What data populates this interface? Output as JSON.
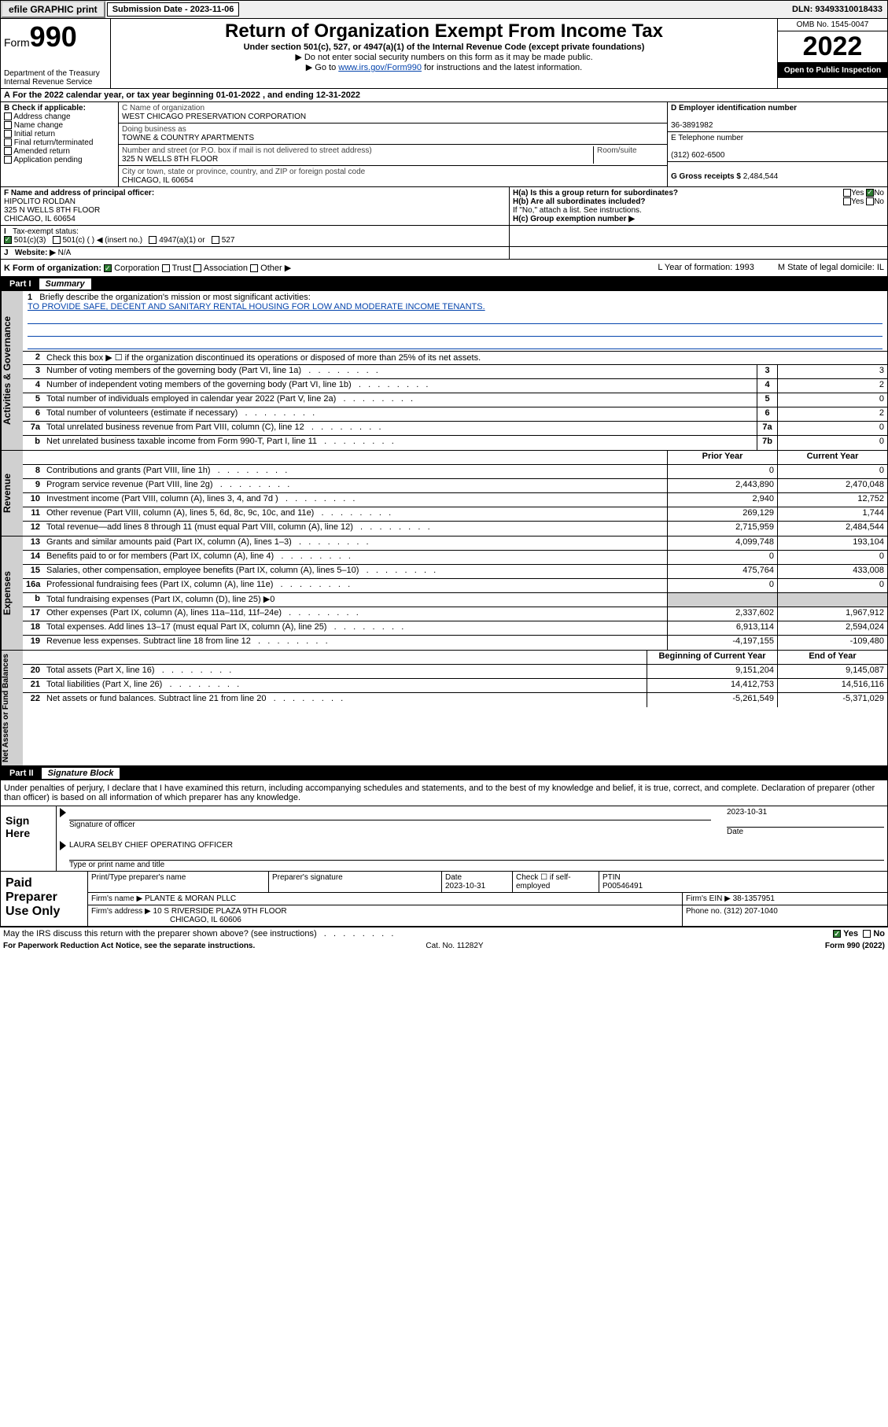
{
  "topbar": {
    "efile": "efile GRAPHIC print",
    "subdate_label": "Submission Date - 2023-11-06",
    "dln": "DLN: 93493310018433"
  },
  "header": {
    "form_label": "Form",
    "form_num": "990",
    "dept": "Department of the Treasury",
    "irs": "Internal Revenue Service",
    "title": "Return of Organization Exempt From Income Tax",
    "sub1": "Under section 501(c), 527, or 4947(a)(1) of the Internal Revenue Code (except private foundations)",
    "sub2": "▶ Do not enter social security numbers on this form as it may be made public.",
    "sub3_pre": "▶ Go to ",
    "sub3_link": "www.irs.gov/Form990",
    "sub3_post": " for instructions and the latest information.",
    "omb": "OMB No. 1545-0047",
    "year": "2022",
    "open": "Open to Public Inspection"
  },
  "A": {
    "text": "For the 2022 calendar year, or tax year beginning 01-01-2022   , and ending 12-31-2022"
  },
  "B": {
    "label": "B Check if applicable:",
    "opts": [
      "Address change",
      "Name change",
      "Initial return",
      "Final return/terminated",
      "Amended return",
      "Application pending"
    ]
  },
  "C": {
    "name_label": "C Name of organization",
    "name": "WEST CHICAGO PRESERVATION CORPORATION",
    "dba_label": "Doing business as",
    "dba": "TOWNE & COUNTRY APARTMENTS",
    "addr_label": "Number and street (or P.O. box if mail is not delivered to street address)",
    "room_label": "Room/suite",
    "addr": "325 N WELLS 8TH FLOOR",
    "city_label": "City or town, state or province, country, and ZIP or foreign postal code",
    "city": "CHICAGO, IL  60654"
  },
  "D": {
    "label": "D Employer identification number",
    "val": "36-3891982"
  },
  "E": {
    "label": "E Telephone number",
    "val": "(312) 602-6500"
  },
  "G": {
    "label": "G Gross receipts $",
    "val": "2,484,544"
  },
  "F": {
    "label": "F Name and address of principal officer:",
    "name": "HIPOLITO ROLDAN",
    "addr1": "325 N WELLS 8TH FLOOR",
    "addr2": "CHICAGO, IL  60654"
  },
  "H": {
    "a": "H(a)  Is this a group return for subordinates?",
    "a_yes": "Yes",
    "a_no": "No",
    "b": "H(b)  Are all subordinates included?",
    "b_yes": "Yes",
    "b_no": "No",
    "b_note": "If \"No,\" attach a list. See instructions.",
    "c": "H(c)  Group exemption number ▶"
  },
  "I": {
    "label": "Tax-exempt status:",
    "o1": "501(c)(3)",
    "o2": "501(c) (  ) ◀ (insert no.)",
    "o3": "4947(a)(1) or",
    "o4": "527"
  },
  "J": {
    "label": "Website: ▶",
    "val": "N/A"
  },
  "K": {
    "label": "K Form of organization:",
    "o1": "Corporation",
    "o2": "Trust",
    "o3": "Association",
    "o4": "Other ▶",
    "L": "L Year of formation: 1993",
    "M": "M State of legal domicile: IL"
  },
  "part1": {
    "bar_l": "Part I",
    "bar_t": "Summary",
    "sec_activities": "Activities & Governance",
    "sec_revenue": "Revenue",
    "sec_expenses": "Expenses",
    "sec_netassets": "Net Assets or Fund Balances",
    "l1_label": "Briefly describe the organization's mission or most significant activities:",
    "l1_text": "TO PROVIDE SAFE, DECENT AND SANITARY RENTAL HOUSING FOR LOW AND MODERATE INCOME TENANTS.",
    "l2": "Check this box ▶ ☐  if the organization discontinued its operations or disposed of more than 25% of its net assets.",
    "lines_ag": [
      {
        "n": "3",
        "d": "Number of voting members of the governing body (Part VI, line 1a)",
        "b": "3",
        "v": "3"
      },
      {
        "n": "4",
        "d": "Number of independent voting members of the governing body (Part VI, line 1b)",
        "b": "4",
        "v": "2"
      },
      {
        "n": "5",
        "d": "Total number of individuals employed in calendar year 2022 (Part V, line 2a)",
        "b": "5",
        "v": "0"
      },
      {
        "n": "6",
        "d": "Total number of volunteers (estimate if necessary)",
        "b": "6",
        "v": "2"
      },
      {
        "n": "7a",
        "d": "Total unrelated business revenue from Part VIII, column (C), line 12",
        "b": "7a",
        "v": "0"
      },
      {
        "n": "b",
        "d": "Net unrelated business taxable income from Form 990-T, Part I, line 11",
        "b": "7b",
        "v": "0"
      }
    ],
    "hdr_prior": "Prior Year",
    "hdr_curr": "Current Year",
    "rev": [
      {
        "n": "8",
        "d": "Contributions and grants (Part VIII, line 1h)",
        "p": "0",
        "c": "0"
      },
      {
        "n": "9",
        "d": "Program service revenue (Part VIII, line 2g)",
        "p": "2,443,890",
        "c": "2,470,048"
      },
      {
        "n": "10",
        "d": "Investment income (Part VIII, column (A), lines 3, 4, and 7d )",
        "p": "2,940",
        "c": "12,752"
      },
      {
        "n": "11",
        "d": "Other revenue (Part VIII, column (A), lines 5, 6d, 8c, 9c, 10c, and 11e)",
        "p": "269,129",
        "c": "1,744"
      },
      {
        "n": "12",
        "d": "Total revenue—add lines 8 through 11 (must equal Part VIII, column (A), line 12)",
        "p": "2,715,959",
        "c": "2,484,544"
      }
    ],
    "exp": [
      {
        "n": "13",
        "d": "Grants and similar amounts paid (Part IX, column (A), lines 1–3)",
        "p": "4,099,748",
        "c": "193,104"
      },
      {
        "n": "14",
        "d": "Benefits paid to or for members (Part IX, column (A), line 4)",
        "p": "0",
        "c": "0"
      },
      {
        "n": "15",
        "d": "Salaries, other compensation, employee benefits (Part IX, column (A), lines 5–10)",
        "p": "475,764",
        "c": "433,008"
      },
      {
        "n": "16a",
        "d": "Professional fundraising fees (Part IX, column (A), line 11e)",
        "p": "0",
        "c": "0"
      },
      {
        "n": "b",
        "d": "Total fundraising expenses (Part IX, column (D), line 25) ▶0",
        "p": "",
        "c": "",
        "gray": true
      },
      {
        "n": "17",
        "d": "Other expenses (Part IX, column (A), lines 11a–11d, 11f–24e)",
        "p": "2,337,602",
        "c": "1,967,912"
      },
      {
        "n": "18",
        "d": "Total expenses. Add lines 13–17 (must equal Part IX, column (A), line 25)",
        "p": "6,913,114",
        "c": "2,594,024"
      },
      {
        "n": "19",
        "d": "Revenue less expenses. Subtract line 18 from line 12",
        "p": "-4,197,155",
        "c": "-109,480"
      }
    ],
    "hdr_beg": "Beginning of Current Year",
    "hdr_end": "End of Year",
    "net": [
      {
        "n": "20",
        "d": "Total assets (Part X, line 16)",
        "p": "9,151,204",
        "c": "9,145,087"
      },
      {
        "n": "21",
        "d": "Total liabilities (Part X, line 26)",
        "p": "14,412,753",
        "c": "14,516,116"
      },
      {
        "n": "22",
        "d": "Net assets or fund balances. Subtract line 21 from line 20",
        "p": "-5,261,549",
        "c": "-5,371,029"
      }
    ]
  },
  "part2": {
    "bar_l": "Part II",
    "bar_t": "Signature Block",
    "decl": "Under penalties of perjury, I declare that I have examined this return, including accompanying schedules and statements, and to the best of my knowledge and belief, it is true, correct, and complete. Declaration of preparer (other than officer) is based on all information of which preparer has any knowledge.",
    "sign_here": "Sign Here",
    "sig_officer": "Signature of officer",
    "sig_date": "Date",
    "sig_dateval": "2023-10-31",
    "sig_name": "LAURA SELBY CHIEF OPERATING OFFICER",
    "sig_type": "Type or print name and title",
    "paid": "Paid Preparer Use Only",
    "p_name_l": "Print/Type preparer's name",
    "p_sig_l": "Preparer's signature",
    "p_date_l": "Date",
    "p_date": "2023-10-31",
    "p_check": "Check ☐ if self-employed",
    "p_ptin_l": "PTIN",
    "p_ptin": "P00546491",
    "firm_l": "Firm's name    ▶",
    "firm": "PLANTE & MORAN PLLC",
    "ein_l": "Firm's EIN ▶",
    "ein": "38-1357951",
    "addr_l": "Firm's address ▶",
    "addr1": "10 S RIVERSIDE PLAZA 9TH FLOOR",
    "addr2": "CHICAGO, IL  60606",
    "phone_l": "Phone no.",
    "phone": "(312) 207-1040",
    "may": "May the IRS discuss this return with the preparer shown above? (see instructions)",
    "may_yes": "Yes",
    "may_no": "No"
  },
  "footer": {
    "pra": "For Paperwork Reduction Act Notice, see the separate instructions.",
    "cat": "Cat. No. 11282Y",
    "form": "Form 990 (2022)"
  }
}
